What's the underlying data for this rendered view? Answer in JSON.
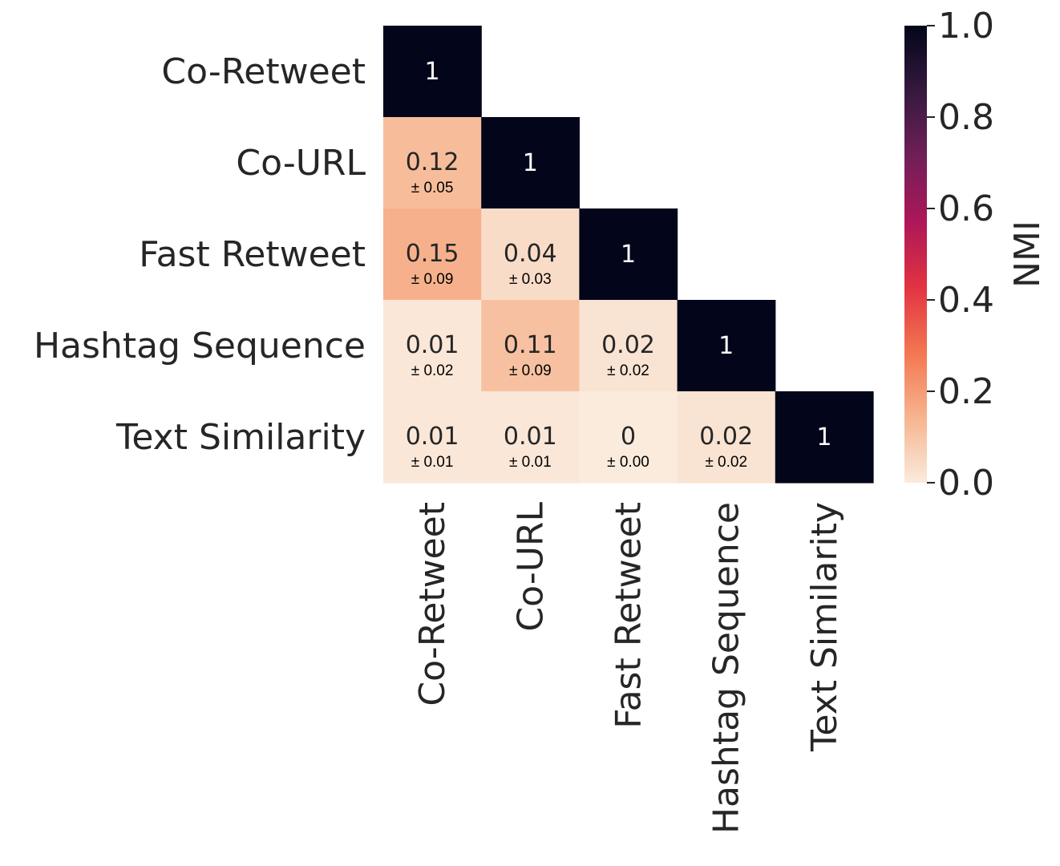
{
  "chart_data": {
    "type": "heatmap",
    "title": "",
    "xlabel": "",
    "ylabel": "",
    "rows": [
      "Co-Retweet",
      "Co-URL",
      "Fast Retweet",
      "Hashtag Sequence",
      "Text Similarity"
    ],
    "cols": [
      "Co-Retweet",
      "Co-URL",
      "Fast Retweet",
      "Hashtag Sequence",
      "Text Similarity"
    ],
    "mask": "upper-triangle",
    "values": [
      [
        1,
        null,
        null,
        null,
        null
      ],
      [
        0.12,
        1,
        null,
        null,
        null
      ],
      [
        0.15,
        0.04,
        1,
        null,
        null
      ],
      [
        0.01,
        0.11,
        0.02,
        1,
        null
      ],
      [
        0.01,
        0.01,
        0,
        0.02,
        1
      ]
    ],
    "value_labels": [
      [
        "1",
        null,
        null,
        null,
        null
      ],
      [
        "0.12",
        "1",
        null,
        null,
        null
      ],
      [
        "0.15",
        "0.04",
        "1",
        null,
        null
      ],
      [
        "0.01",
        "0.11",
        "0.02",
        "1",
        null
      ],
      [
        "0.01",
        "0.01",
        "0",
        "0.02",
        "1"
      ]
    ],
    "error_labels": [
      [
        null,
        null,
        null,
        null,
        null
      ],
      [
        "± 0.05",
        null,
        null,
        null,
        null
      ],
      [
        "± 0.09",
        "± 0.03",
        null,
        null,
        null
      ],
      [
        "± 0.02",
        "± 0.09",
        "± 0.02",
        null,
        null
      ],
      [
        "± 0.01",
        "± 0.01",
        "± 0.00",
        "± 0.02",
        null
      ]
    ],
    "colorbar": {
      "label": "NMI",
      "range": [
        0,
        1
      ],
      "ticks": [
        "0.0",
        "0.2",
        "0.4",
        "0.6",
        "0.8",
        "1.0"
      ],
      "colormap": "rocket_r"
    }
  },
  "colors": {
    "text": "#262626",
    "cmap_stops": [
      "#faebdd",
      "#f6b48f",
      "#f37651",
      "#e13342",
      "#ad1759",
      "#701f57",
      "#35193e",
      "#03051a"
    ]
  }
}
